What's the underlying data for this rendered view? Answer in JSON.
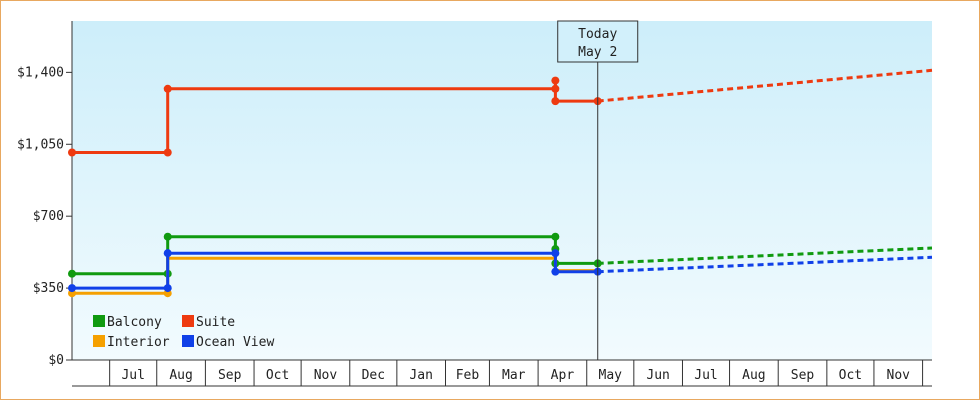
{
  "chart_data": {
    "type": "line",
    "title": "",
    "xlabel": "",
    "ylabel": "",
    "ylim": [
      0,
      1650
    ],
    "yticks": [
      0,
      350,
      700,
      1050,
      1400
    ],
    "ytick_labels": [
      "$0",
      "$350",
      "$700",
      "$1,050",
      "$1,400"
    ],
    "x_start": "2024-06-01",
    "x_end": "2025-12-01",
    "month_ticks": [
      {
        "label": "Jul",
        "from": "2024-06-25",
        "to": "2024-07-25"
      },
      {
        "label": "Aug",
        "from": "2024-07-25",
        "to": "2024-08-25"
      },
      {
        "label": "Sep",
        "from": "2024-08-25",
        "to": "2024-09-25"
      },
      {
        "label": "Oct",
        "from": "2024-09-25",
        "to": "2024-10-25"
      },
      {
        "label": "Nov",
        "from": "2024-10-25",
        "to": "2024-11-25"
      },
      {
        "label": "Dec",
        "from": "2024-11-25",
        "to": "2024-12-25"
      },
      {
        "label": "Jan",
        "from": "2024-12-25",
        "to": "2025-01-25"
      },
      {
        "label": "Feb",
        "from": "2025-01-25",
        "to": "2025-02-22"
      },
      {
        "label": "Mar",
        "from": "2025-02-22",
        "to": "2025-03-25"
      },
      {
        "label": "Apr",
        "from": "2025-03-25",
        "to": "2025-04-25"
      },
      {
        "label": "May",
        "from": "2025-04-25",
        "to": "2025-05-25"
      },
      {
        "label": "Jun",
        "from": "2025-05-25",
        "to": "2025-06-25"
      },
      {
        "label": "Jul",
        "from": "2025-06-25",
        "to": "2025-07-25"
      },
      {
        "label": "Aug",
        "from": "2025-07-25",
        "to": "2025-08-25"
      },
      {
        "label": "Sep",
        "from": "2025-08-25",
        "to": "2025-09-25"
      },
      {
        "label": "Oct",
        "from": "2025-09-25",
        "to": "2025-10-25"
      },
      {
        "label": "Nov",
        "from": "2025-10-25",
        "to": "2025-11-25"
      }
    ],
    "today": {
      "line1": "Today",
      "line2": "May 2",
      "date": "2025-05-02"
    },
    "legend": {
      "placement": "bottom-left"
    },
    "grid": false,
    "series": [
      {
        "name": "Balcony",
        "color": "#109a10",
        "history": [
          {
            "x": "2024-06-01",
            "y": 420
          },
          {
            "x": "2024-08-01",
            "y": 420
          },
          {
            "x": "2024-08-01",
            "y": 600
          },
          {
            "x": "2025-04-05",
            "y": 600
          },
          {
            "x": "2025-04-05",
            "y": 540
          },
          {
            "x": "2025-04-05",
            "y": 470
          },
          {
            "x": "2025-05-02",
            "y": 470
          }
        ],
        "markers": [
          {
            "x": "2024-06-01",
            "y": 420
          },
          {
            "x": "2024-08-01",
            "y": 420
          },
          {
            "x": "2024-08-01",
            "y": 600
          },
          {
            "x": "2025-04-05",
            "y": 600
          },
          {
            "x": "2025-04-05",
            "y": 540
          },
          {
            "x": "2025-04-05",
            "y": 470
          },
          {
            "x": "2025-05-02",
            "y": 470
          }
        ],
        "forecast": [
          {
            "x": "2025-05-02",
            "y": 470
          },
          {
            "x": "2025-12-01",
            "y": 545
          }
        ]
      },
      {
        "name": "Suite",
        "color": "#ee3a10",
        "history": [
          {
            "x": "2024-06-01",
            "y": 1010
          },
          {
            "x": "2024-08-01",
            "y": 1010
          },
          {
            "x": "2024-08-01",
            "y": 1320
          },
          {
            "x": "2025-04-05",
            "y": 1320
          },
          {
            "x": "2025-04-05",
            "y": 1360
          },
          {
            "x": "2025-04-05",
            "y": 1260
          },
          {
            "x": "2025-05-02",
            "y": 1260
          }
        ],
        "markers": [
          {
            "x": "2024-06-01",
            "y": 1010
          },
          {
            "x": "2024-08-01",
            "y": 1010
          },
          {
            "x": "2024-08-01",
            "y": 1320
          },
          {
            "x": "2025-04-05",
            "y": 1320
          },
          {
            "x": "2025-04-05",
            "y": 1360
          },
          {
            "x": "2025-04-05",
            "y": 1260
          },
          {
            "x": "2025-05-02",
            "y": 1260
          }
        ],
        "forecast": [
          {
            "x": "2025-05-02",
            "y": 1260
          },
          {
            "x": "2025-12-01",
            "y": 1410
          }
        ]
      },
      {
        "name": "Interior",
        "color": "#f5a000",
        "history": [
          {
            "x": "2024-06-01",
            "y": 325
          },
          {
            "x": "2024-08-01",
            "y": 325
          },
          {
            "x": "2024-08-01",
            "y": 495
          },
          {
            "x": "2025-04-05",
            "y": 495
          },
          {
            "x": "2025-04-05",
            "y": 435
          },
          {
            "x": "2025-05-02",
            "y": 435
          }
        ],
        "markers": [
          {
            "x": "2024-06-01",
            "y": 325
          },
          {
            "x": "2024-08-01",
            "y": 325
          }
        ],
        "forecast": []
      },
      {
        "name": "Ocean View",
        "color": "#1040e8",
        "history": [
          {
            "x": "2024-06-01",
            "y": 350
          },
          {
            "x": "2024-08-01",
            "y": 350
          },
          {
            "x": "2024-08-01",
            "y": 520
          },
          {
            "x": "2025-04-05",
            "y": 520
          },
          {
            "x": "2025-04-05",
            "y": 430
          },
          {
            "x": "2025-05-02",
            "y": 430
          }
        ],
        "markers": [
          {
            "x": "2024-06-01",
            "y": 350
          },
          {
            "x": "2024-08-01",
            "y": 350
          },
          {
            "x": "2024-08-01",
            "y": 520
          },
          {
            "x": "2025-04-05",
            "y": 520
          },
          {
            "x": "2025-04-05",
            "y": 430
          },
          {
            "x": "2025-05-02",
            "y": 430
          }
        ],
        "forecast": [
          {
            "x": "2025-05-02",
            "y": 430
          },
          {
            "x": "2025-12-01",
            "y": 500
          }
        ]
      }
    ]
  }
}
